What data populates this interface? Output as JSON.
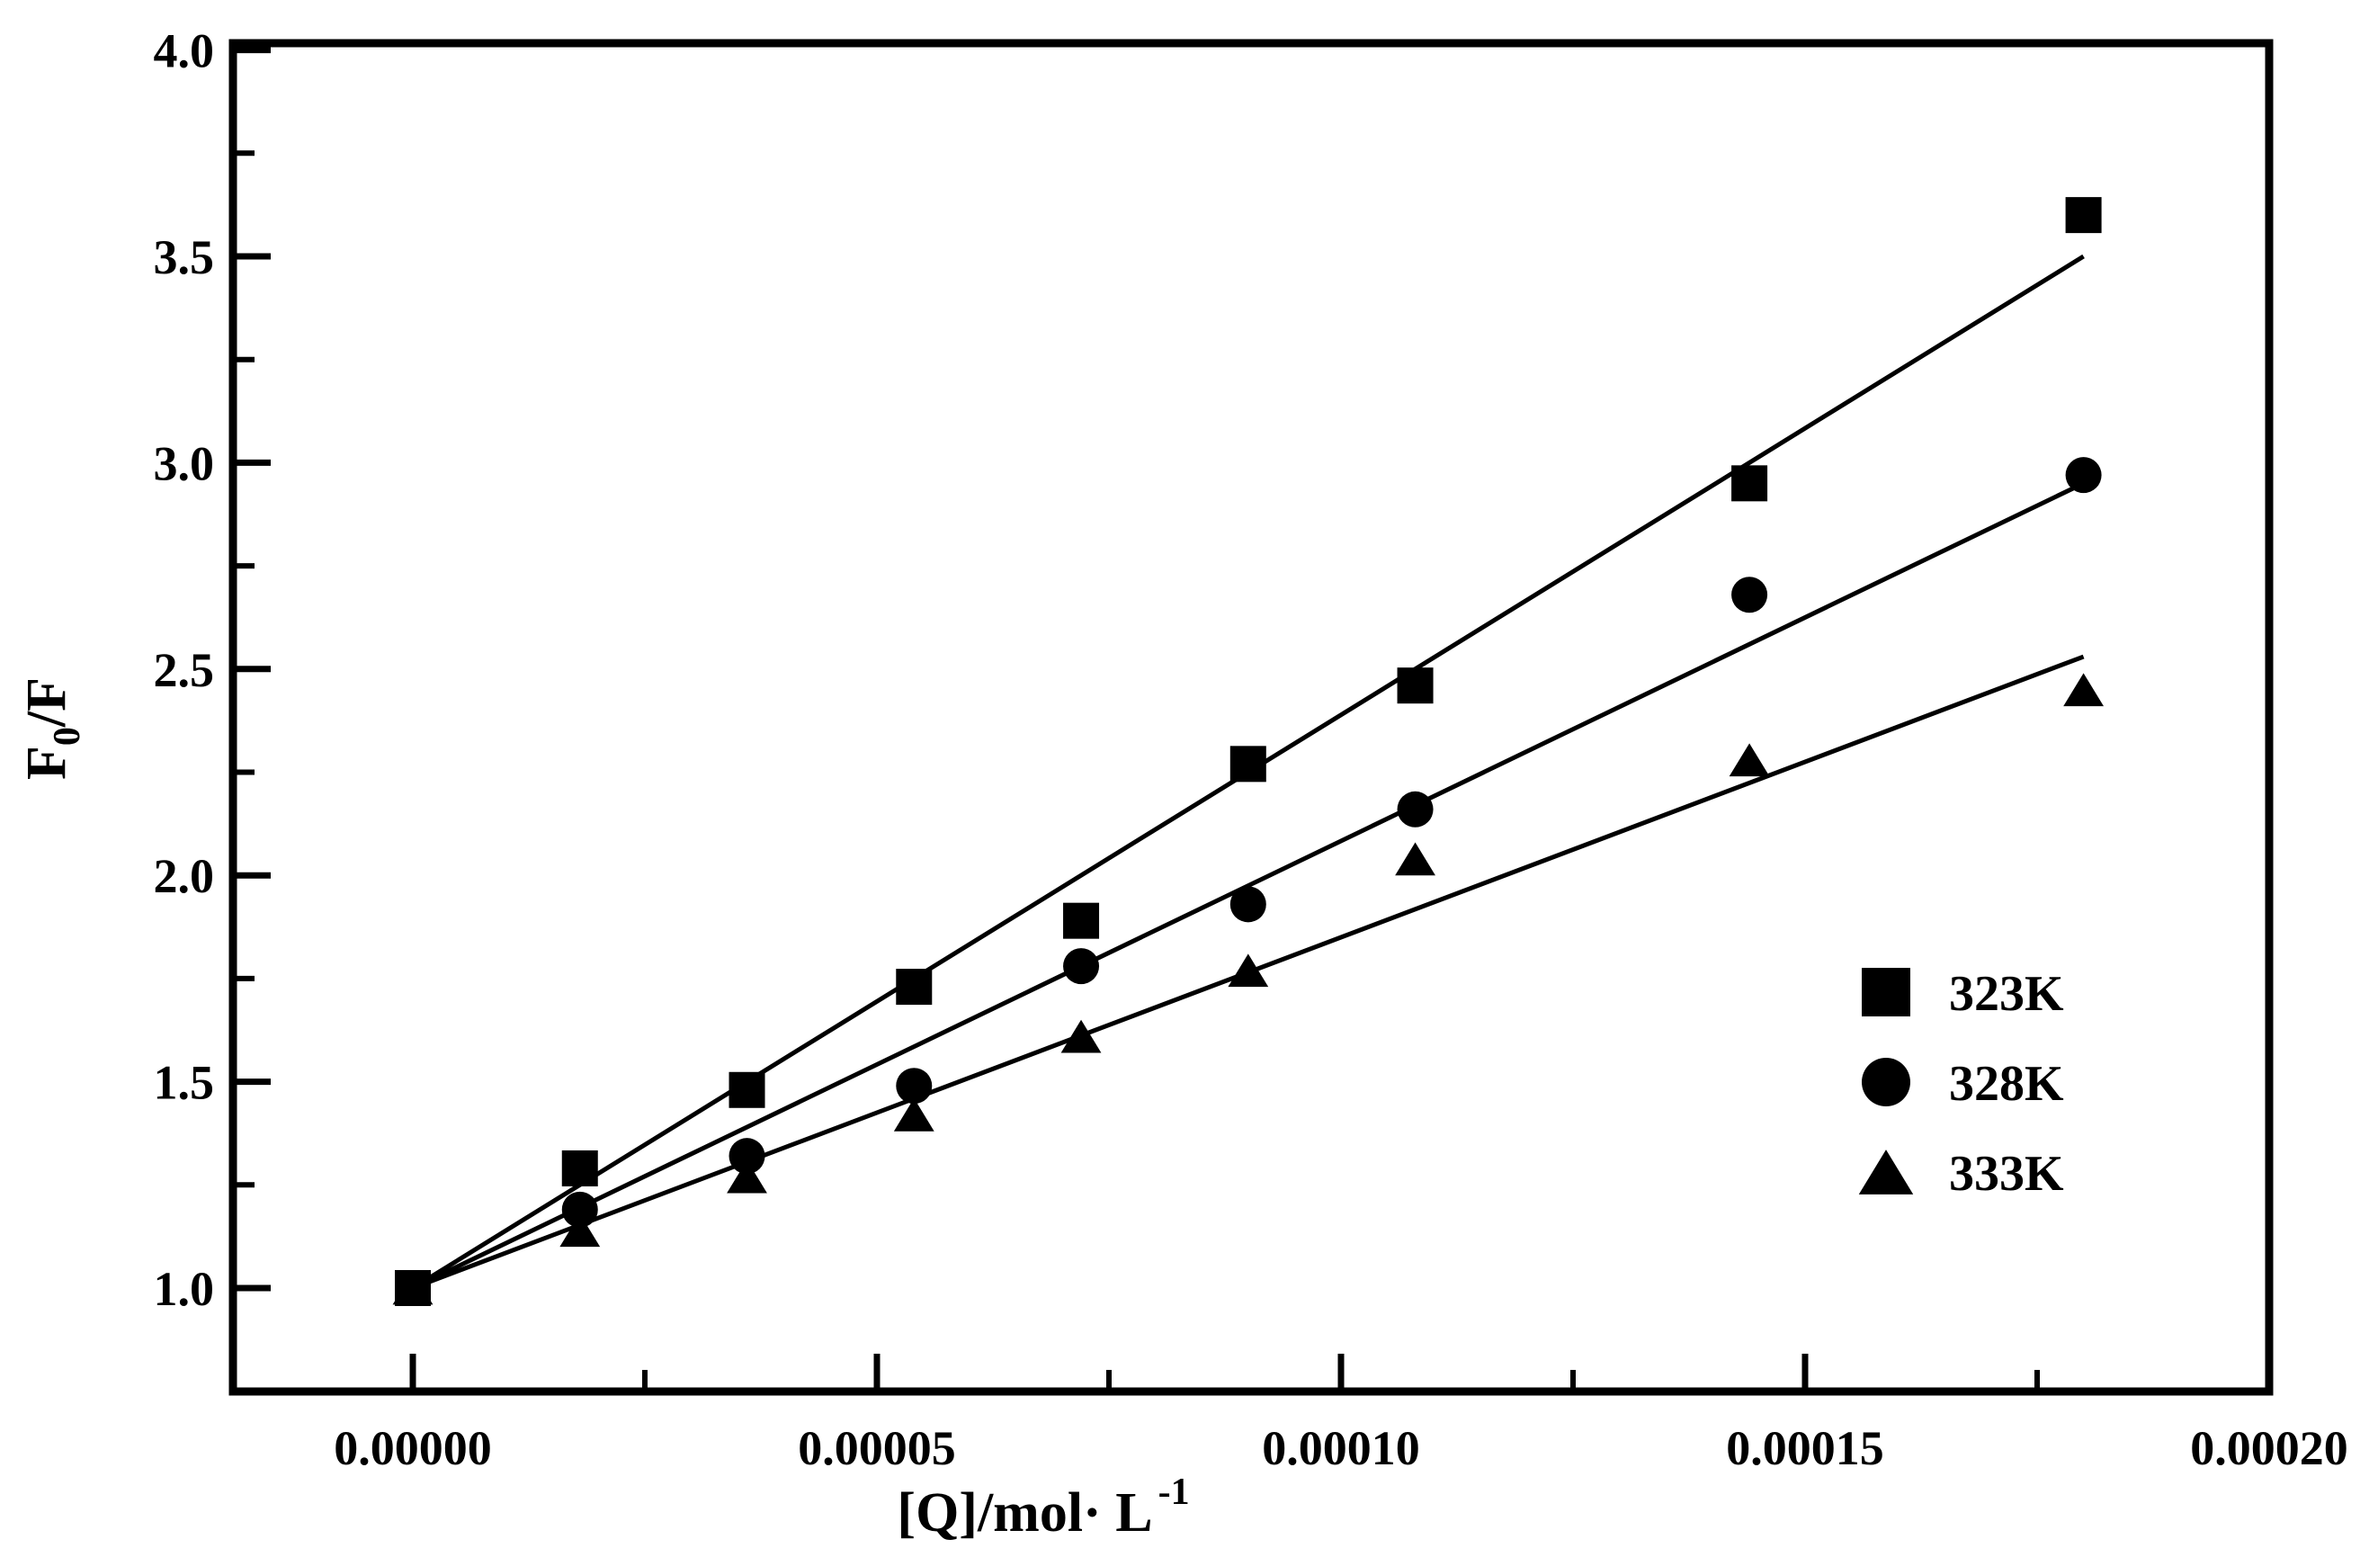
{
  "chart_data": {
    "type": "scatter",
    "title": "",
    "xlabel": "[Q]/mol· L",
    "xlabel_superscript": "-1",
    "ylabel_parts": {
      "base": "F",
      "subscript": "0",
      "rest": "/F"
    },
    "x": [
      0,
      1.8e-05,
      3.6e-05,
      5.4e-05,
      7.2e-05,
      9e-05,
      0.000108,
      0.000144,
      0.00018
    ],
    "series": [
      {
        "name": "323K",
        "marker": "square",
        "values": [
          1.0,
          1.29,
          1.48,
          1.73,
          1.89,
          2.27,
          2.46,
          2.95,
          3.6
        ],
        "fit_line": {
          "x_start": 0,
          "y_start": 1.0,
          "x_end": 0.00018,
          "y_end": 3.5
        }
      },
      {
        "name": "328K",
        "marker": "circle",
        "values": [
          1.0,
          1.19,
          1.32,
          1.49,
          1.78,
          1.93,
          2.16,
          2.68,
          2.97
        ],
        "fit_line": {
          "x_start": 0,
          "y_start": 1.0,
          "x_end": 0.00018,
          "y_end": 2.95
        }
      },
      {
        "name": "333K",
        "marker": "triangle",
        "values": [
          1.0,
          1.14,
          1.27,
          1.42,
          1.61,
          1.77,
          2.04,
          2.28,
          2.45
        ],
        "fit_line": {
          "x_start": 0,
          "y_start": 1.0,
          "x_end": 0.00018,
          "y_end": 2.53
        }
      }
    ],
    "x_ticks": {
      "major": [
        0,
        5e-05,
        0.0001,
        0.00015,
        0.0002
      ],
      "labels": [
        "0.00000",
        "0.00005",
        "0.00010",
        "0.00015",
        "0.00020"
      ],
      "minor": [
        2.5e-05,
        7.5e-05,
        0.000125,
        0.000175
      ]
    },
    "y_ticks": {
      "major": [
        1.0,
        1.5,
        2.0,
        2.5,
        3.0,
        3.5,
        4.0
      ],
      "labels": [
        "1.0",
        "1.5",
        "2.0",
        "2.5",
        "3.0",
        "3.5",
        "4.0"
      ],
      "minor": [
        1.25,
        1.75,
        2.25,
        2.75,
        3.25,
        3.75
      ]
    },
    "xlim": [
      0,
      0.0002
    ],
    "ylim": [
      1.0,
      4.0
    ],
    "grid": false,
    "legend": {
      "position": "lower right",
      "entries": [
        "323K",
        "328K",
        "333K"
      ]
    },
    "colors": {
      "foreground": "#000000",
      "background": "#ffffff"
    }
  }
}
